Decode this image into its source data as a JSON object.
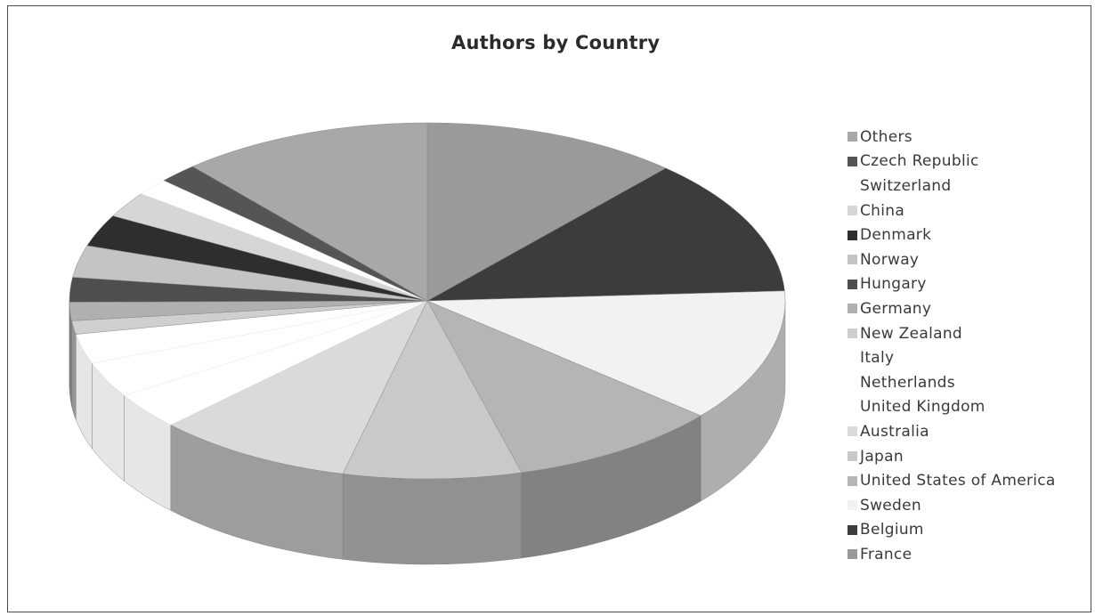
{
  "chart_data": {
    "type": "pie",
    "title": "Authors by Country",
    "legend_placement": "right",
    "series": [
      {
        "label": "France",
        "value": 10.4,
        "color": "#9a9a9a"
      },
      {
        "label": "Belgium",
        "value": 11.2,
        "color": "#3c3c3c"
      },
      {
        "label": "Sweden",
        "value": 10.8,
        "color": "#f2f2f2"
      },
      {
        "label": "United States of America",
        "value": 8.6,
        "color": "#b5b5b5"
      },
      {
        "label": "Japan",
        "value": 7.2,
        "color": "#c9c9c9"
      },
      {
        "label": "Australia",
        "value": 8.0,
        "color": "#dadada"
      },
      {
        "label": "United Kingdom",
        "value": 3.0,
        "color": "#ffffff"
      },
      {
        "label": "Netherlands",
        "value": 2.9,
        "color": "#ffffff"
      },
      {
        "label": "Italy",
        "value": 2.4,
        "color": "#ffffff"
      },
      {
        "label": "New Zealand",
        "value": 1.1,
        "color": "#cfcfcf"
      },
      {
        "label": "Germany",
        "value": 1.5,
        "color": "#b0b0b0"
      },
      {
        "label": "Hungary",
        "value": 2.0,
        "color": "#4e4e4e"
      },
      {
        "label": "Norway",
        "value": 2.6,
        "color": "#c4c4c4"
      },
      {
        "label": "Denmark",
        "value": 2.6,
        "color": "#2e2e2e"
      },
      {
        "label": "China",
        "value": 2.1,
        "color": "#d6d6d6"
      },
      {
        "label": "Switzerland",
        "value": 1.4,
        "color": "#ffffff"
      },
      {
        "label": "Czech Republic",
        "value": 1.6,
        "color": "#555555"
      },
      {
        "label": "Others",
        "value": 10.2,
        "color": "#a8a8a8"
      }
    ],
    "legend_order": [
      "Others",
      "Czech Republic",
      "Switzerland",
      "China",
      "Denmark",
      "Norway",
      "Hungary",
      "Germany",
      "New Zealand",
      "Italy",
      "Netherlands",
      "United Kingdom",
      "Australia",
      "Japan",
      "United States of America",
      "Sweden",
      "Belgium",
      "France"
    ]
  },
  "legend": {
    "items": [
      {
        "label": "Others",
        "color": "#a8a8a8"
      },
      {
        "label": "Czech Republic",
        "color": "#555555"
      },
      {
        "label": "Switzerland",
        "color": "#ffffff"
      },
      {
        "label": "China",
        "color": "#d6d6d6"
      },
      {
        "label": "Denmark",
        "color": "#2e2e2e"
      },
      {
        "label": "Norway",
        "color": "#c4c4c4"
      },
      {
        "label": "Hungary",
        "color": "#4e4e4e"
      },
      {
        "label": "Germany",
        "color": "#b0b0b0"
      },
      {
        "label": "New Zealand",
        "color": "#cfcfcf"
      },
      {
        "label": "Italy",
        "color": "#ffffff"
      },
      {
        "label": "Netherlands",
        "color": "#ffffff"
      },
      {
        "label": "United Kingdom",
        "color": "#ffffff"
      },
      {
        "label": "Australia",
        "color": "#dadada"
      },
      {
        "label": "Japan",
        "color": "#c9c9c9"
      },
      {
        "label": "United States of America",
        "color": "#b5b5b5"
      },
      {
        "label": "Sweden",
        "color": "#f2f2f2"
      },
      {
        "label": "Belgium",
        "color": "#3c3c3c"
      },
      {
        "label": "France",
        "color": "#9a9a9a"
      }
    ]
  }
}
